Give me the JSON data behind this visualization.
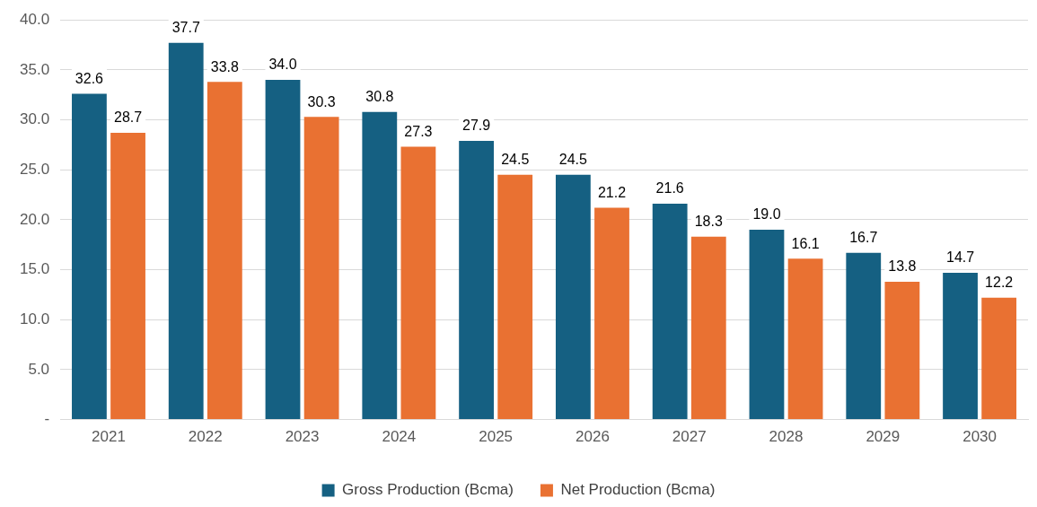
{
  "chart_data": {
    "type": "bar",
    "categories": [
      "2021",
      "2022",
      "2023",
      "2024",
      "2025",
      "2026",
      "2027",
      "2028",
      "2029",
      "2030"
    ],
    "series": [
      {
        "name": "Gross Production (Bcma)",
        "color": "#156082",
        "values": [
          32.6,
          37.7,
          34.0,
          30.8,
          27.9,
          24.5,
          21.6,
          19.0,
          16.7,
          14.7
        ],
        "value_labels": [
          "32.6",
          "37.7",
          "34.0",
          "30.8",
          "27.9",
          "24.5",
          "21.6",
          "19.0",
          "16.7",
          "14.7"
        ]
      },
      {
        "name": "Net Production (Bcma)",
        "color": "#e97132",
        "values": [
          28.7,
          33.8,
          30.3,
          27.3,
          24.5,
          21.2,
          18.3,
          16.1,
          13.8,
          12.2
        ],
        "value_labels": [
          "28.7",
          "33.8",
          "30.3",
          "27.3",
          "24.5",
          "21.2",
          "18.3",
          "16.1",
          "13.8",
          "12.2"
        ]
      }
    ],
    "ylim": [
      0,
      40
    ],
    "yticks": [
      {
        "value": 0,
        "label": "-"
      },
      {
        "value": 5,
        "label": "5.0"
      },
      {
        "value": 10,
        "label": "10.0"
      },
      {
        "value": 15,
        "label": "15.0"
      },
      {
        "value": 20,
        "label": "20.0"
      },
      {
        "value": 25,
        "label": "25.0"
      },
      {
        "value": 30,
        "label": "30.0"
      },
      {
        "value": 35,
        "label": "35.0"
      },
      {
        "value": 40,
        "label": "40.0"
      }
    ],
    "grid": "y",
    "legend": "bottom"
  }
}
